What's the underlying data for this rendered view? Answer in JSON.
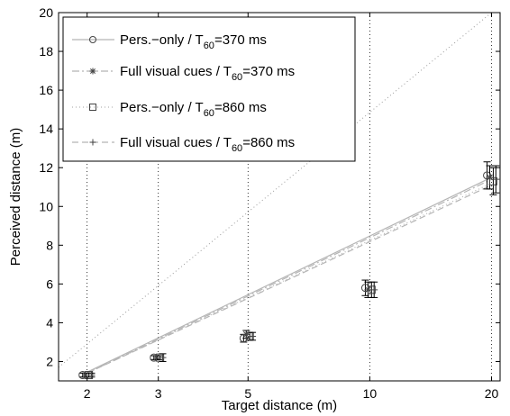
{
  "chart_data": {
    "type": "scatter",
    "xlabel": "Target distance (m)",
    "ylabel": "Perceived distance (m)",
    "xscale": "log",
    "xlim": [
      1.7,
      21
    ],
    "ylim": [
      1,
      20
    ],
    "xticks": [
      2,
      3,
      5,
      10,
      20
    ],
    "yticks": [
      2,
      4,
      6,
      8,
      10,
      12,
      14,
      16,
      18,
      20
    ],
    "grid": "vertical dotted at x ticks",
    "legend_position": "top-left",
    "reference_line": {
      "style": "dotted",
      "points": [
        [
          1,
          1
        ],
        [
          20,
          20
        ]
      ]
    },
    "series": [
      {
        "label_main": "Pers.−only / T",
        "label_sub": "60",
        "label_tail": "=370 ms",
        "marker": "circle",
        "line_style": "solid",
        "offset_factor": 0.975,
        "x": [
          2,
          3,
          5,
          10,
          20
        ],
        "y": [
          1.3,
          2.2,
          3.2,
          5.8,
          11.6
        ],
        "err": [
          0.1,
          0.1,
          0.2,
          0.4,
          0.7
        ],
        "fit": [
          [
            2,
            1.45
          ],
          [
            20,
            11.5
          ]
        ]
      },
      {
        "label_main": "Full visual cues / T",
        "label_sub": "60",
        "label_tail": "=370 ms",
        "marker": "asterisk",
        "line_style": "dashdot",
        "offset_factor": 0.99,
        "x": [
          2,
          3,
          5,
          10,
          20
        ],
        "y": [
          1.3,
          2.2,
          3.4,
          5.7,
          11.5
        ],
        "err": [
          0.1,
          0.1,
          0.2,
          0.4,
          0.6
        ],
        "fit": [
          [
            2,
            1.4
          ],
          [
            20,
            11.4
          ]
        ]
      },
      {
        "label_main": "Pers.−only / T",
        "label_sub": "60",
        "label_tail": "=860 ms",
        "marker": "square",
        "line_style": "dotted",
        "offset_factor": 1.01,
        "x": [
          2,
          3,
          5,
          10,
          20
        ],
        "y": [
          1.3,
          2.2,
          3.3,
          5.7,
          11.3
        ],
        "err": [
          0.1,
          0.1,
          0.2,
          0.4,
          0.7
        ],
        "fit": [
          [
            2,
            1.4
          ],
          [
            20,
            11.2
          ]
        ]
      },
      {
        "label_main": "Full visual cues / T",
        "label_sub": "60",
        "label_tail": "=860 ms",
        "marker": "plus",
        "line_style": "dashed",
        "offset_factor": 1.025,
        "x": [
          2,
          3,
          5,
          10,
          20
        ],
        "y": [
          1.3,
          2.2,
          3.3,
          5.7,
          11.4
        ],
        "err": [
          0.1,
          0.2,
          0.2,
          0.4,
          0.7
        ],
        "fit": [
          [
            2,
            1.4
          ],
          [
            20,
            11.1
          ]
        ]
      }
    ]
  },
  "colors": {
    "fit_line": "#b5b5b5",
    "reference_line": "#9a9a9a",
    "marker": "#444444",
    "axis": "#000000"
  }
}
